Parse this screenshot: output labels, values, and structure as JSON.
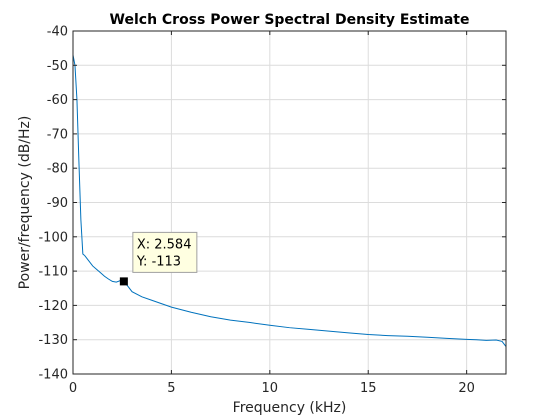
{
  "chart_data": {
    "type": "line",
    "title": "Welch Cross Power Spectral Density Estimate",
    "xlabel": "Frequency (kHz)",
    "ylabel": "Power/frequency (dB/Hz)",
    "xlim": [
      0,
      22
    ],
    "ylim": [
      -140,
      -40
    ],
    "xticks": [
      0,
      5,
      10,
      15,
      20
    ],
    "yticks": [
      -40,
      -50,
      -60,
      -70,
      -80,
      -90,
      -100,
      -110,
      -120,
      -130,
      -140
    ],
    "grid": true,
    "series": [
      {
        "color": "#0072bd",
        "x": [
          0,
          0.1,
          0.2,
          0.3,
          0.4,
          0.5,
          0.6,
          0.8,
          1.0,
          1.2,
          1.4,
          1.6,
          1.8,
          2.0,
          2.2,
          2.4,
          2.584,
          2.8,
          3.0,
          3.5,
          4.0,
          5.0,
          6.0,
          7.0,
          8.0,
          9.0,
          10.0,
          11.0,
          12.0,
          13.0,
          14.0,
          15.0,
          16.0,
          17.0,
          18.0,
          19.0,
          20.0,
          20.5,
          21.0,
          21.5,
          21.8,
          22.0
        ],
        "y": [
          -47,
          -50,
          -60,
          -78,
          -95,
          -105,
          -105.5,
          -107,
          -108.5,
          -109.5,
          -110.5,
          -111.5,
          -112.3,
          -113,
          -113.2,
          -112.8,
          -113,
          -114.5,
          -116,
          -117.5,
          -118.5,
          -120.5,
          -122,
          -123.3,
          -124.3,
          -125,
          -125.8,
          -126.5,
          -127,
          -127.5,
          -128,
          -128.5,
          -128.8,
          -129,
          -129.3,
          -129.6,
          -129.9,
          -130,
          -130.2,
          -130.1,
          -130.5,
          -132
        ]
      }
    ],
    "datatip": {
      "x": 2.584,
      "y": -113,
      "x_text": "X: 2.584",
      "y_text": "Y: -113"
    }
  }
}
